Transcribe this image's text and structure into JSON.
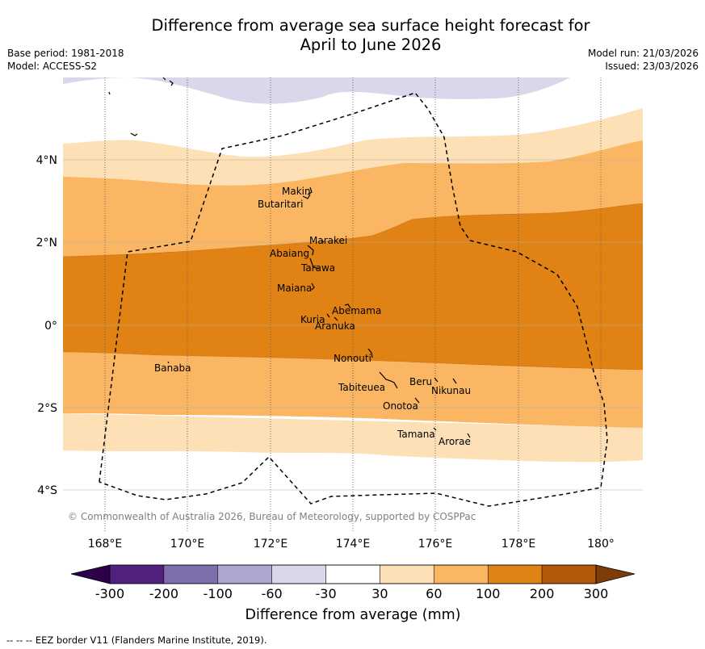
{
  "title_line1": "Difference from average sea surface height forecast for",
  "title_line2": "April to June 2026",
  "meta_left": [
    "Base period: 1981-2018",
    "Model: ACCESS-S2"
  ],
  "meta_right": [
    "Model run: 21/03/2026",
    "Issued: 23/03/2026"
  ],
  "copyright": "© Commonwealth of Australia 2026, Bureau of Meteorology, supported by COSPPac",
  "lon_ticks": [
    "168°E",
    "170°E",
    "172°E",
    "174°E",
    "176°E",
    "178°E",
    "180°"
  ],
  "lat_ticks": [
    "4°N",
    "2°N",
    "0°",
    "2°S",
    "4°S"
  ],
  "islands": [
    {
      "name": "Makin"
    },
    {
      "name": "Butaritari"
    },
    {
      "name": "Marakei"
    },
    {
      "name": "Abaiang"
    },
    {
      "name": "Tarawa"
    },
    {
      "name": "Maiana"
    },
    {
      "name": "Abemama"
    },
    {
      "name": "Kuria"
    },
    {
      "name": "Aranuka"
    },
    {
      "name": "Nonouti"
    },
    {
      "name": "Banaba"
    },
    {
      "name": "Beru"
    },
    {
      "name": "Nikunau"
    },
    {
      "name": "Tabiteuea"
    },
    {
      "name": "Onotoa"
    },
    {
      "name": "Tamana"
    },
    {
      "name": "Arorae"
    }
  ],
  "colorbar": {
    "ticks": [
      "-300",
      "-200",
      "-100",
      "-60",
      "-30",
      "30",
      "60",
      "100",
      "200",
      "300"
    ],
    "colors": [
      "#52207e",
      "#7e6eab",
      "#ada6d0",
      "#d8d8ea",
      "#ffffff",
      "#fee0b6",
      "#fbb664",
      "#e08314",
      "#b35807"
    ],
    "under_color": "#2d004b",
    "over_color": "#7f3b08",
    "label": "Difference from average (mm)"
  },
  "footer": "--  --  -- EEZ border V11 (Flanders Marine Institute, 2019)."
}
